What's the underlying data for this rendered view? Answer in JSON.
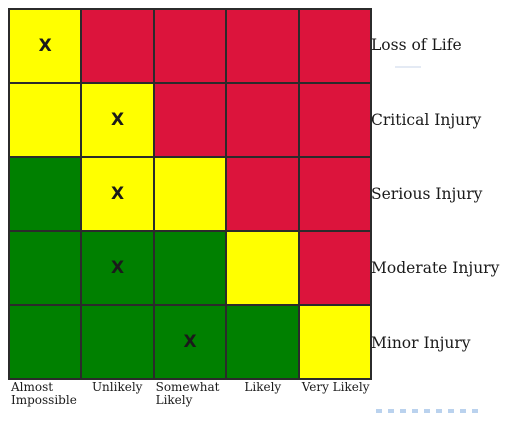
{
  "colors": {
    "red": "#dc143c",
    "yellow": "#ffff00",
    "green": "#008000"
  },
  "severity_rows": [
    {
      "label": "Loss of Life",
      "cells": [
        {
          "color": "yellow",
          "mark": "X"
        },
        {
          "color": "red",
          "mark": ""
        },
        {
          "color": "red",
          "mark": ""
        },
        {
          "color": "red",
          "mark": ""
        },
        {
          "color": "red",
          "mark": ""
        }
      ]
    },
    {
      "label": "Critical Injury",
      "cells": [
        {
          "color": "yellow",
          "mark": ""
        },
        {
          "color": "yellow",
          "mark": "X"
        },
        {
          "color": "red",
          "mark": ""
        },
        {
          "color": "red",
          "mark": ""
        },
        {
          "color": "red",
          "mark": ""
        }
      ]
    },
    {
      "label": "Serious Injury",
      "cells": [
        {
          "color": "green",
          "mark": ""
        },
        {
          "color": "yellow",
          "mark": "X"
        },
        {
          "color": "yellow",
          "mark": ""
        },
        {
          "color": "red",
          "mark": ""
        },
        {
          "color": "red",
          "mark": ""
        }
      ]
    },
    {
      "label": "Moderate Injury",
      "cells": [
        {
          "color": "green",
          "mark": ""
        },
        {
          "color": "green",
          "mark": "X"
        },
        {
          "color": "green",
          "mark": ""
        },
        {
          "color": "yellow",
          "mark": ""
        },
        {
          "color": "red",
          "mark": ""
        }
      ]
    },
    {
      "label": "Minor Injury",
      "cells": [
        {
          "color": "green",
          "mark": ""
        },
        {
          "color": "green",
          "mark": ""
        },
        {
          "color": "green",
          "mark": "X"
        },
        {
          "color": "green",
          "mark": ""
        },
        {
          "color": "yellow",
          "mark": ""
        }
      ]
    }
  ],
  "likelihood_columns": [
    "Almost\nImpossible",
    "Unlikely",
    "Somewhat\nLikely",
    "Likely",
    "Very Likely"
  ]
}
